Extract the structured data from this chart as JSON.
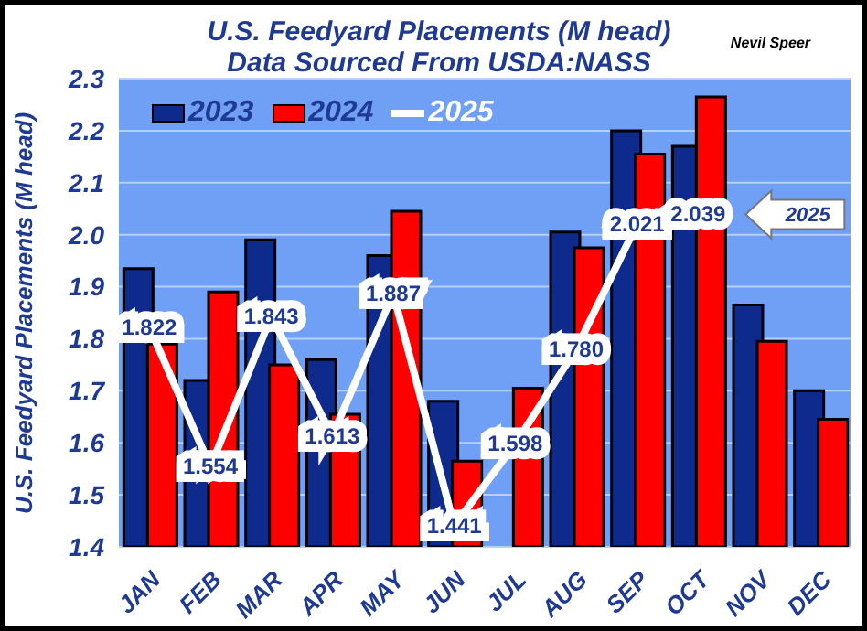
{
  "chart_data": {
    "type": "bar",
    "title": "U.S. Feedyard Placements (M head)",
    "subtitle": "Data Sourced From USDA:NASS",
    "ylabel": "U.S. Feedyard Placements (M head)",
    "categories": [
      "JAN",
      "FEB",
      "MAR",
      "APR",
      "MAY",
      "JUN",
      "JUL",
      "AUG",
      "SEP",
      "OCT",
      "NOV",
      "DEC"
    ],
    "series": [
      {
        "name": "2023",
        "color": "#0d2a8c",
        "values": [
          1.935,
          1.72,
          1.99,
          1.76,
          1.96,
          1.68,
          null,
          2.005,
          2.2,
          2.17,
          1.865,
          1.7
        ]
      },
      {
        "name": "2024",
        "color": "#ff0000",
        "values": [
          1.79,
          1.89,
          1.75,
          1.655,
          2.045,
          1.565,
          1.705,
          1.975,
          2.155,
          2.265,
          1.795,
          1.645
        ]
      },
      {
        "name": "2025",
        "type": "line",
        "color": "#ffffff",
        "values": [
          1.822,
          1.554,
          1.843,
          1.613,
          1.887,
          1.441,
          1.598,
          1.78,
          2.021,
          2.039,
          null,
          null
        ],
        "value_labels": [
          "1.822",
          "1.554",
          "1.843",
          "1.613",
          "1.887",
          "1.441",
          "1.598",
          "1.780",
          "2.021",
          "2.039",
          null,
          null
        ]
      }
    ],
    "ylim": [
      1.4,
      2.3
    ],
    "yticks": [
      {
        "value": 1.4,
        "label": "1.4"
      },
      {
        "value": 1.5,
        "label": "1.5"
      },
      {
        "value": 1.6,
        "label": "1.6"
      },
      {
        "value": 1.7,
        "label": "1.7"
      },
      {
        "value": 1.8,
        "label": "1.8"
      },
      {
        "value": 1.9,
        "label": "1.9"
      },
      {
        "value": 2.0,
        "label": "2.0"
      },
      {
        "value": 2.1,
        "label": "2.1"
      },
      {
        "value": 2.2,
        "label": "2.2"
      },
      {
        "value": 2.3,
        "label": "2.3"
      }
    ],
    "grid": "y",
    "legend": "top left",
    "line_style": "solid",
    "annotations": [
      "2025",
      "Nevil Speer"
    ]
  }
}
